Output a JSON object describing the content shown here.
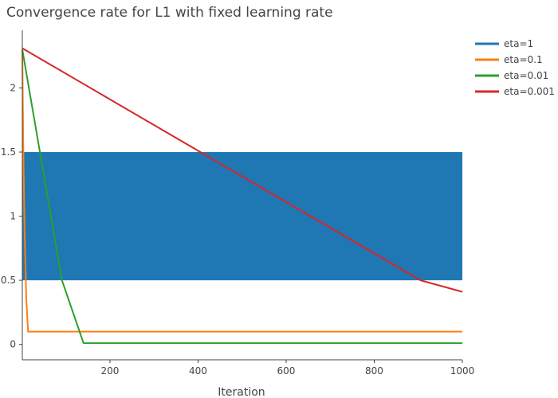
{
  "chart_data": {
    "type": "line",
    "title": "Convergence rate for L1 with fixed learning rate",
    "xlabel": "Iteration",
    "ylabel": "",
    "xlim": [
      1,
      1000
    ],
    "ylim": [
      -0.12,
      2.45
    ],
    "x_ticks": [
      200,
      400,
      600,
      800,
      1000
    ],
    "y_ticks": [
      0,
      0.5,
      1,
      1.5,
      2
    ],
    "x_tick_labels": [
      "200",
      "400",
      "600",
      "800",
      "1000"
    ],
    "y_tick_labels": [
      "0",
      "0.5",
      "1",
      "1.5",
      "2"
    ],
    "legend_position": "top-right",
    "grid": false,
    "series": [
      {
        "name": "eta=1",
        "color": "#1f77b4",
        "oscillating": true,
        "band": [
          0.5,
          1.5
        ],
        "x": [
          1,
          1000
        ],
        "values": [
          1.5,
          0.5
        ]
      },
      {
        "name": "eta=0.1",
        "color": "#ff7f0e",
        "x": [
          1,
          3,
          6,
          10,
          14,
          20,
          1000
        ],
        "values": [
          2.3,
          1.6,
          0.9,
          0.35,
          0.1,
          0.1,
          0.1
        ]
      },
      {
        "name": "eta=0.01",
        "color": "#2ca02c",
        "x": [
          1,
          91,
          140,
          1000
        ],
        "values": [
          2.3,
          0.5,
          0.01,
          0.01
        ]
      },
      {
        "name": "eta=0.001",
        "color": "#d62728",
        "x": [
          1,
          400,
          905,
          1000
        ],
        "values": [
          2.31,
          1.51,
          0.5,
          0.41
        ]
      }
    ]
  }
}
